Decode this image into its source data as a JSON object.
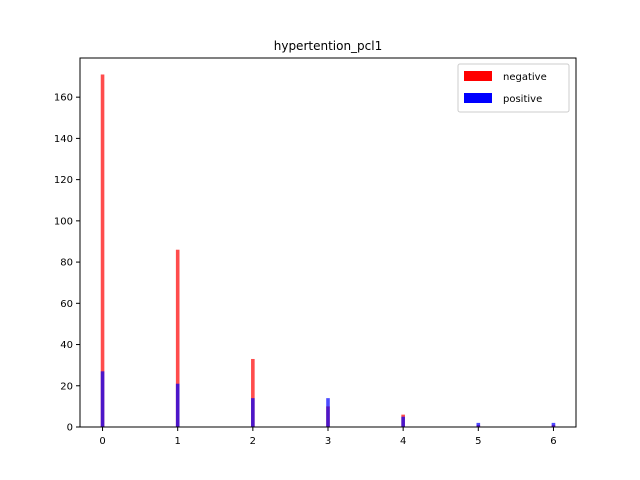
{
  "chart_data": {
    "type": "bar",
    "title": "hypertention_pcl1",
    "xlabel": "",
    "ylabel": "",
    "xlim": [
      -0.3,
      6.3
    ],
    "ylim": [
      0,
      179
    ],
    "x_ticks": [
      0,
      1,
      2,
      3,
      4,
      5,
      6
    ],
    "y_ticks": [
      0,
      20,
      40,
      60,
      80,
      100,
      120,
      140,
      160
    ],
    "grid": false,
    "legend_position": "top-right",
    "series": [
      {
        "name": "negative",
        "color": "#ff0000",
        "alpha": 0.7,
        "x": [
          0,
          1,
          2,
          3,
          4,
          5,
          6
        ],
        "values": [
          171,
          86,
          33,
          10,
          6,
          1,
          1
        ]
      },
      {
        "name": "positive",
        "color": "#0000ff",
        "alpha": 0.7,
        "x": [
          0,
          1,
          2,
          3,
          4,
          5,
          6
        ],
        "values": [
          27,
          21,
          14,
          14,
          5,
          2,
          2
        ]
      }
    ]
  }
}
